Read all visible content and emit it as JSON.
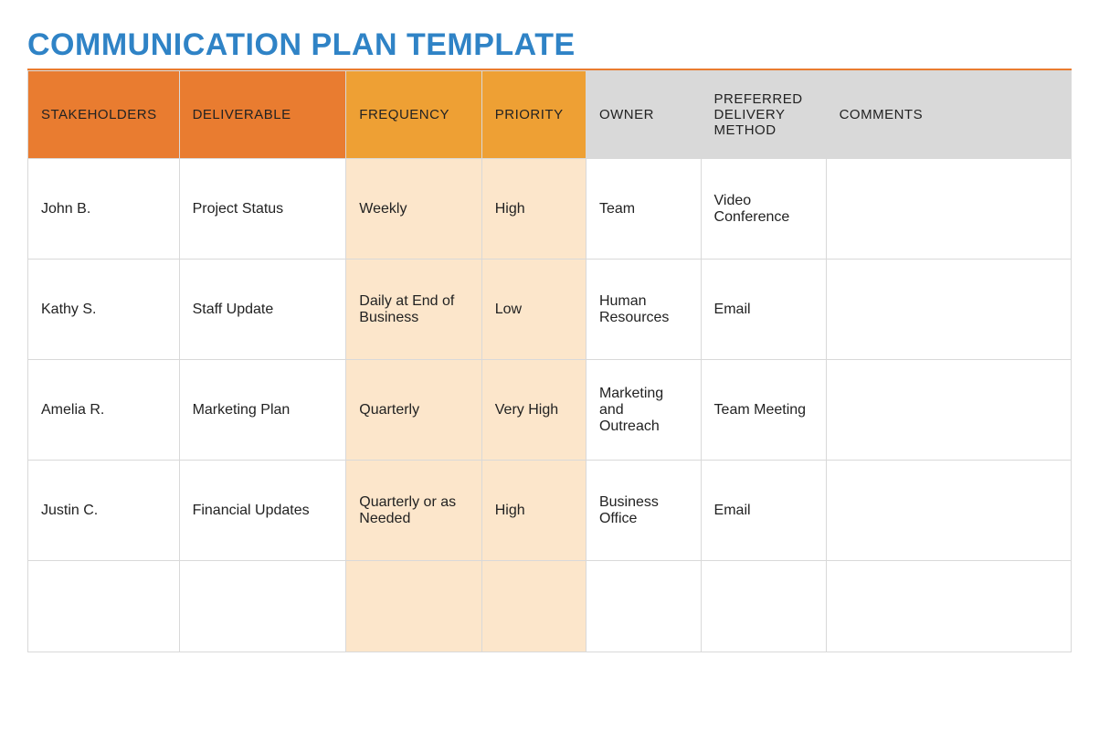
{
  "title": "COMMUNICATION PLAN TEMPLATE",
  "title_color": "#2f83c6",
  "title_rule_color": "#e97c30",
  "table": {
    "columns": [
      {
        "label": "STAKEHOLDERS",
        "header_bg": "#e97c30",
        "header_fg": "#222222",
        "cell_bg": "#ffffff",
        "width": "14.5%"
      },
      {
        "label": "DELIVERABLE",
        "header_bg": "#e97c30",
        "header_fg": "#222222",
        "cell_bg": "#ffffff",
        "width": "16%"
      },
      {
        "label": "FREQUENCY",
        "header_bg": "#eea034",
        "header_fg": "#222222",
        "cell_bg": "#fce6cb",
        "width": "13%"
      },
      {
        "label": "PRIORITY",
        "header_bg": "#eea034",
        "header_fg": "#222222",
        "cell_bg": "#fce6cb",
        "width": "10%"
      },
      {
        "label": "OWNER",
        "header_bg": "#d9d9d9",
        "header_fg": "#222222",
        "cell_bg": "#ffffff",
        "width": "11%"
      },
      {
        "label": "PREFERRED DELIVERY METHOD",
        "header_bg": "#d9d9d9",
        "header_fg": "#222222",
        "cell_bg": "#ffffff",
        "width": "12%"
      },
      {
        "label": "COMMENTS",
        "header_bg": "#d9d9d9",
        "header_fg": "#222222",
        "cell_bg": "#ffffff",
        "width": "23.5%"
      }
    ],
    "rows": [
      [
        "John B.",
        "Project Status",
        "Weekly",
        "High",
        "Team",
        "Video Conference",
        ""
      ],
      [
        "Kathy S.",
        "Staff Update",
        "Daily at End of Business",
        "Low",
        "Human Resources",
        "Email",
        ""
      ],
      [
        "Amelia R.",
        "Marketing Plan",
        "Quarterly",
        "Very High",
        "Marketing and Outreach",
        "Team Meeting",
        ""
      ],
      [
        "Justin C.",
        "Financial Updates",
        "Quarterly or as Needed",
        "High",
        "Business Office",
        "Email",
        ""
      ],
      [
        "",
        "",
        "",
        "",
        "",
        "",
        ""
      ]
    ],
    "border_color": "#d9d9d9",
    "cell_font_size": 16,
    "header_font_size": 15
  }
}
